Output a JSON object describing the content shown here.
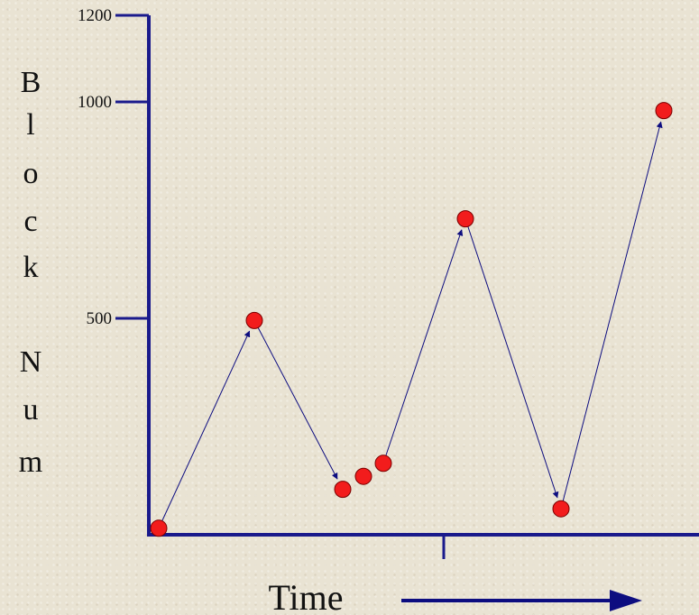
{
  "chart_data": {
    "type": "scatter",
    "title": "",
    "xlabel": "Time",
    "ylabel": "Block Num",
    "ylabel_lines": [
      "B",
      "l",
      "o",
      "c",
      "k",
      "",
      "N",
      "u",
      "m"
    ],
    "ylim": [
      0,
      1200
    ],
    "yticks": [
      500,
      1000,
      1200
    ],
    "ytick_labels": [
      "500",
      "1000",
      "1200"
    ],
    "grid": false,
    "connected_by_arrows": true,
    "series": [
      {
        "x": [
          0,
          1,
          2,
          2.23,
          2.46,
          3.5,
          4.5,
          5.5
        ],
        "y": [
          15,
          495,
          105,
          135,
          165,
          730,
          60,
          980
        ]
      }
    ],
    "colors": {
      "axis": "#1a1a8c",
      "point_fill": "#f21c1c",
      "point_stroke": "#7a0000",
      "arrow": "#0d0d80"
    }
  }
}
